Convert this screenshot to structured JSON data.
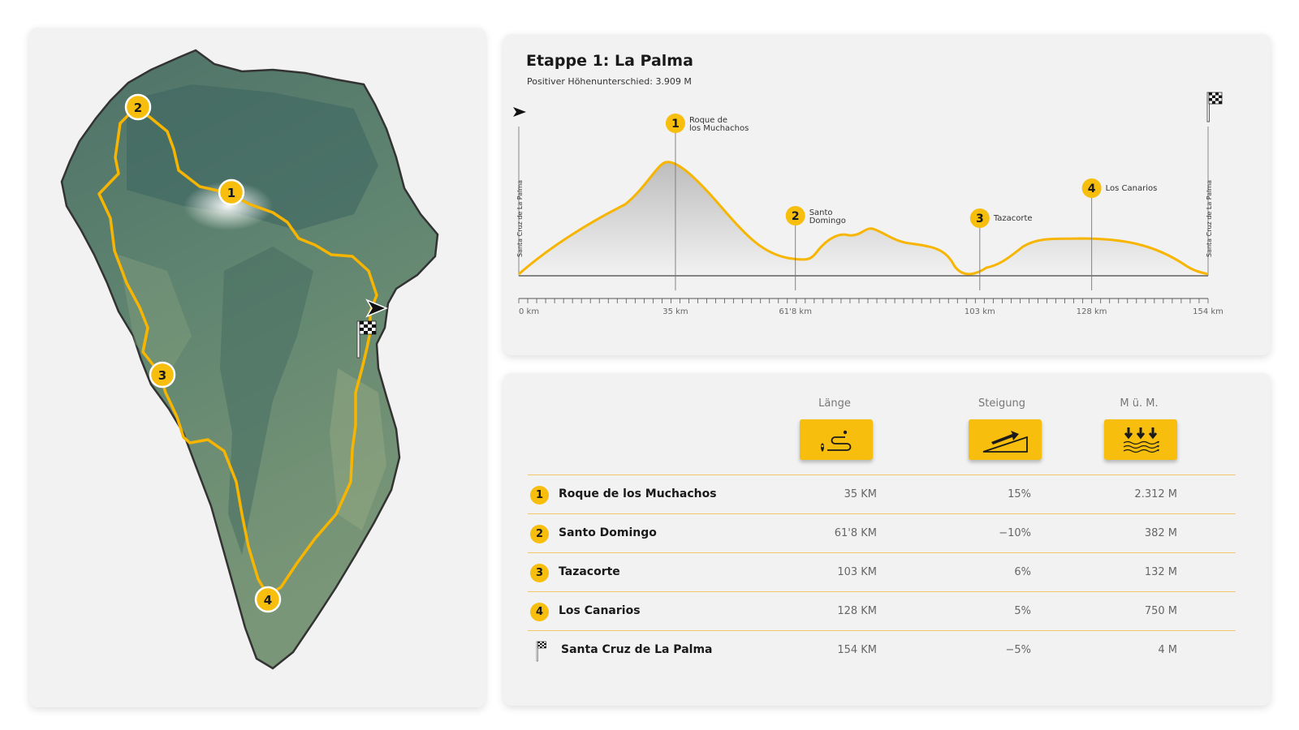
{
  "stage": {
    "title": "Etappe 1: La Palma",
    "subtitle": "Positiver Höhenunterschied: 3.909 M"
  },
  "profile": {
    "start_end_label": "Santa Cruz de La Palma",
    "total_km": 154,
    "axis_ticks": [
      {
        "km": 0,
        "label": "0 km"
      },
      {
        "km": 35,
        "label": "35 km"
      },
      {
        "km": 61.8,
        "label": "61'8 km"
      },
      {
        "km": 103,
        "label": "103 km"
      },
      {
        "km": 128,
        "label": "128 km"
      },
      {
        "km": 154,
        "label": "154 km"
      }
    ],
    "waypoints": [
      {
        "num": "1",
        "km": 35,
        "lines": [
          "Roque de",
          "los Muchachos"
        ]
      },
      {
        "num": "2",
        "km": 61.8,
        "lines": [
          "Santo",
          "Domingo"
        ]
      },
      {
        "num": "3",
        "km": 103,
        "lines": [
          "Tazacorte"
        ]
      },
      {
        "num": "4",
        "km": 128,
        "lines": [
          "Los Canarios"
        ]
      }
    ],
    "colors": {
      "route": "#f7b500",
      "fill_top": "#bdbdbd",
      "fill_bottom": "#f2f2f2"
    }
  },
  "map": {
    "markers": [
      "1",
      "2",
      "3",
      "4"
    ],
    "icons": [
      "start-arrow-icon",
      "finish-flag-icon"
    ]
  },
  "table": {
    "headers": {
      "length": "Länge",
      "gradient": "Steigung",
      "altitude": "M ü. M."
    },
    "header_icons": [
      "route-length-icon",
      "gradient-slope-icon",
      "sea-level-icon"
    ],
    "rows": [
      {
        "num": "1",
        "name": "Roque de los Muchachos",
        "length": "35 KM",
        "gradient": "15%",
        "altitude": "2.312 M"
      },
      {
        "num": "2",
        "name": "Santo Domingo",
        "length": "61'8 KM",
        "gradient": "−10%",
        "altitude": "382 M"
      },
      {
        "num": "3",
        "name": "Tazacorte",
        "length": "103 KM",
        "gradient": "6%",
        "altitude": "132 M"
      },
      {
        "num": "4",
        "name": "Los Canarios",
        "length": "128 KM",
        "gradient": "5%",
        "altitude": "750 M"
      },
      {
        "num": "",
        "name": "Santa Cruz de La Palma",
        "length": "154 KM",
        "gradient": "−5%",
        "altitude": "4 M"
      }
    ]
  },
  "colors": {
    "accent": "#f7be0d",
    "card": "#f2f2f2",
    "terrain": "#5d7f6e"
  }
}
